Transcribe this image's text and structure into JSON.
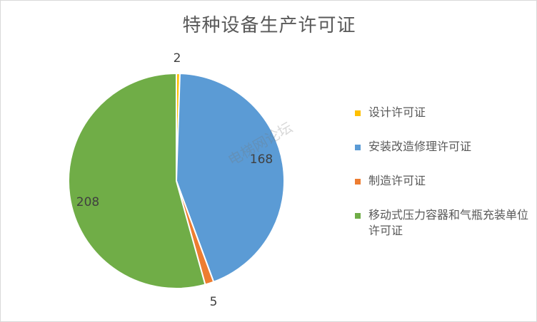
{
  "chart_data": {
    "type": "pie",
    "title": "特种设备生产许可证",
    "categories": [
      "设计许可证",
      "安装改造修理许可证",
      "制造许可证",
      "移动式压力容器和气瓶充装单位许可证"
    ],
    "values": [
      2,
      168,
      5,
      208
    ],
    "colors": [
      "#FFC000",
      "#5B9BD5",
      "#ED7D31",
      "#70AD47"
    ],
    "legend_position": "right"
  },
  "watermark": "电梯网论坛"
}
